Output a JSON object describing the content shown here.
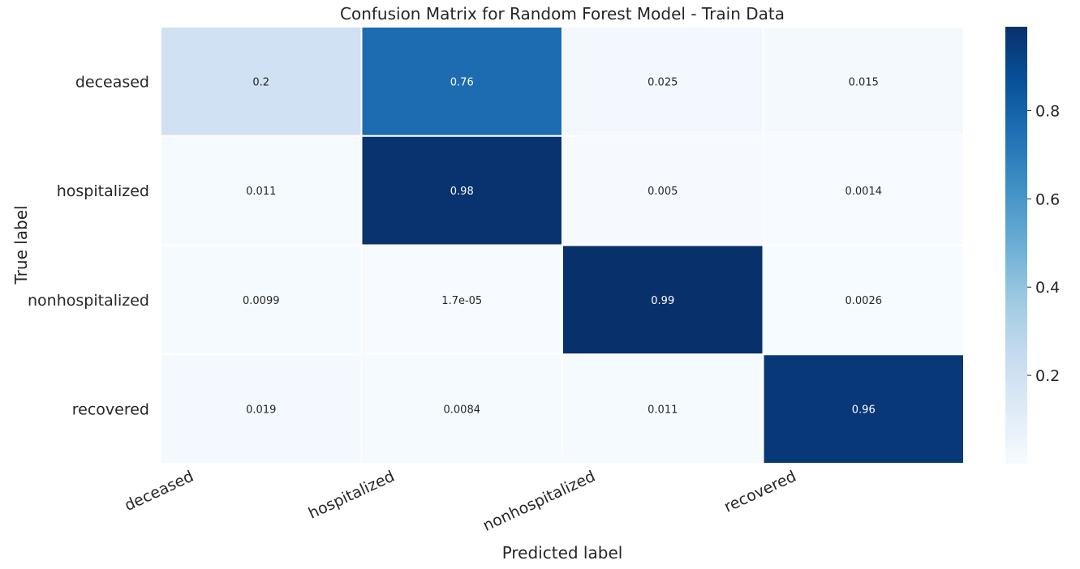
{
  "chart_data": {
    "type": "heatmap",
    "title": "Confusion Matrix for Random Forest Model - Train Data",
    "xlabel": "Predicted label",
    "ylabel": "True label",
    "x_categories": [
      "deceased",
      "hospitalized",
      "nonhospitalized",
      "recovered"
    ],
    "y_categories": [
      "deceased",
      "hospitalized",
      "nonhospitalized",
      "recovered"
    ],
    "values": [
      [
        0.2,
        0.76,
        0.025,
        0.015
      ],
      [
        0.011,
        0.98,
        0.005,
        0.0014
      ],
      [
        0.0099,
        1.7e-05,
        0.99,
        0.0026
      ],
      [
        0.019,
        0.0084,
        0.011,
        0.96
      ]
    ],
    "cell_labels": [
      [
        "0.2",
        "0.76",
        "0.025",
        "0.015"
      ],
      [
        "0.011",
        "0.98",
        "0.005",
        "0.0014"
      ],
      [
        "0.0099",
        "1.7e-05",
        "0.99",
        "0.0026"
      ],
      [
        "0.019",
        "0.0084",
        "0.011",
        "0.96"
      ]
    ],
    "colormap": "Blues",
    "color_range": [
      1.7e-05,
      0.99
    ],
    "colorbar": {
      "ticks": [
        0.2,
        0.4,
        0.6,
        0.8
      ],
      "tick_labels": [
        "0.2",
        "0.4",
        "0.6",
        "0.8"
      ]
    },
    "grid": false,
    "legend": "colorbar-right"
  }
}
